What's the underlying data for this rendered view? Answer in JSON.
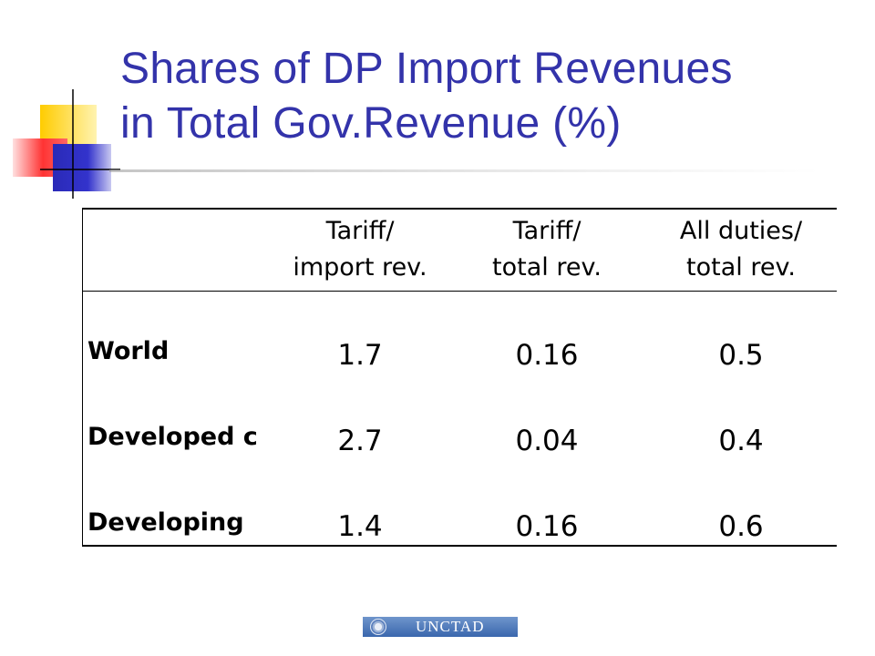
{
  "slide": {
    "title_lines": [
      "Shares of DP Import Revenues",
      "in Total Gov.Revenue (%)"
    ],
    "colors": {
      "title": "#3333aa",
      "decor_yellow": "#ffcc00",
      "decor_red": "#ff3333",
      "decor_blue": "#3333cc"
    }
  },
  "table": {
    "headers": [
      [
        "",
        ""
      ],
      [
        "Tariff/",
        "import rev."
      ],
      [
        "Tariff/",
        "total rev."
      ],
      [
        "All duties/",
        "total rev."
      ]
    ],
    "rows": [
      {
        "label": "World",
        "values": [
          "1.7",
          "0.16",
          "0.5"
        ]
      },
      {
        "label": "Developed c",
        "values": [
          "2.7",
          "0.04",
          "0.4"
        ]
      },
      {
        "label": "Developing",
        "values": [
          "1.4",
          "0.16",
          "0.6"
        ]
      }
    ]
  },
  "footer": {
    "logo_text": "UNCTAD",
    "logo_icon": "un-emblem-icon"
  }
}
